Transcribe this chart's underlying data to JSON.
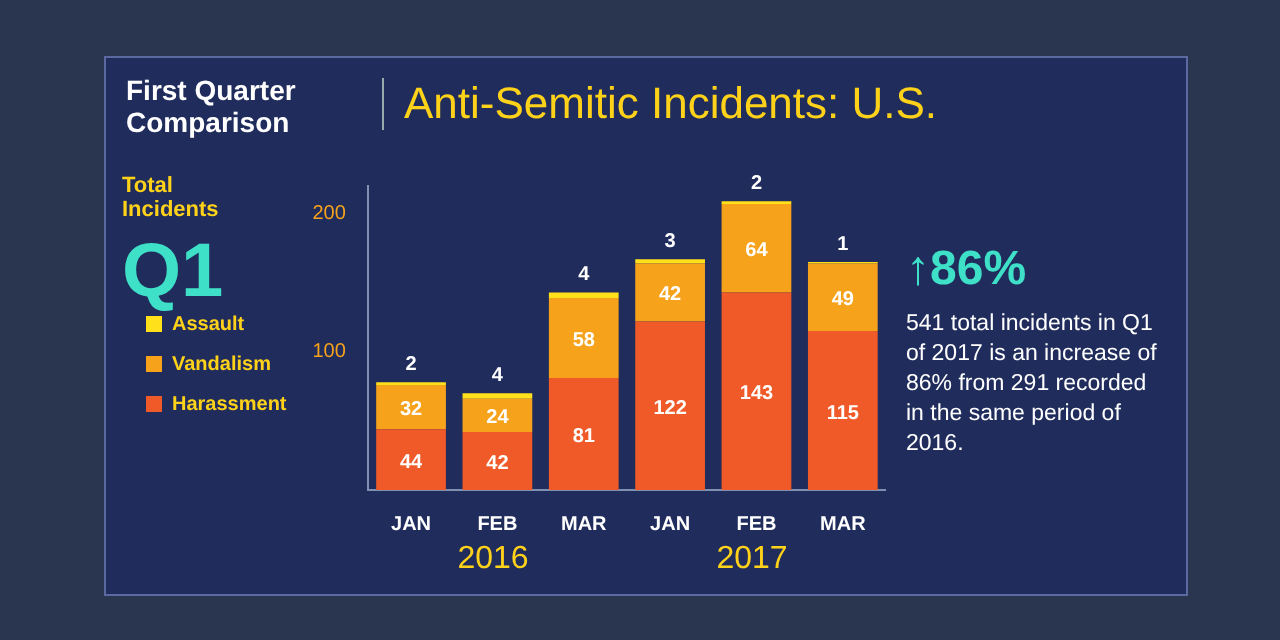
{
  "chart_data": {
    "type": "bar",
    "title": "Anti-Semitic Incidents: U.S.",
    "subtitle": "First Quarter Comparison",
    "ylabel": "Total Incidents",
    "categories": [
      "JAN",
      "FEB",
      "MAR",
      "JAN",
      "FEB",
      "MAR"
    ],
    "series": [
      {
        "name": "Harassment",
        "color": "#f05a28",
        "values": [
          44,
          42,
          81,
          122,
          143,
          115
        ]
      },
      {
        "name": "Vandalism",
        "color": "#f7a21b",
        "values": [
          32,
          24,
          58,
          42,
          64,
          49
        ]
      },
      {
        "name": "Assault",
        "color": "#ffe01a",
        "values": [
          2,
          4,
          4,
          3,
          2,
          1
        ]
      }
    ],
    "stacked": true,
    "ylim": [
      0,
      220
    ],
    "yticks": [
      100,
      200
    ],
    "data_labels": true,
    "legend": "left",
    "annotations": [
      "Q1",
      "2016",
      "2017",
      "↑86%",
      "541 total incidents in Q1 of 2017 is an increase of 86% from 291 recorded in the same period of 2016."
    ]
  }
}
